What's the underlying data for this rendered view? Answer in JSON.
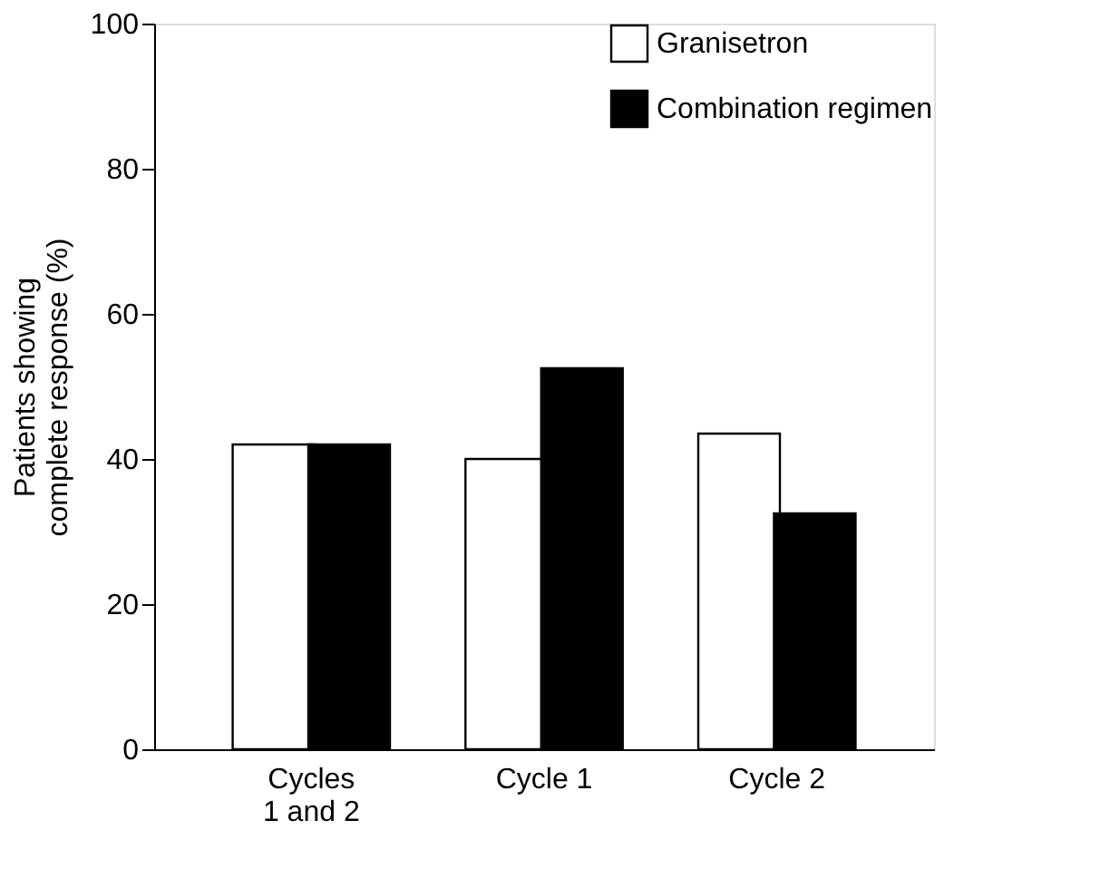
{
  "chart_data": {
    "type": "bar",
    "ylabel": "Patients showing\ncomplete response (%)",
    "categories": [
      "Cycles\n1 and 2",
      "Cycle 1",
      "Cycle 2"
    ],
    "series": [
      {
        "name": "Granisetron",
        "color": "#ffffff",
        "values": [
          42,
          40,
          43.5
        ]
      },
      {
        "name": "Combination regimen",
        "color": "#000000",
        "values": [
          42,
          52.5,
          32.5
        ]
      }
    ],
    "ylim": [
      0,
      100
    ],
    "yticks": [
      0,
      20,
      40,
      60,
      80,
      100
    ],
    "grid": false,
    "legend": "top right"
  }
}
